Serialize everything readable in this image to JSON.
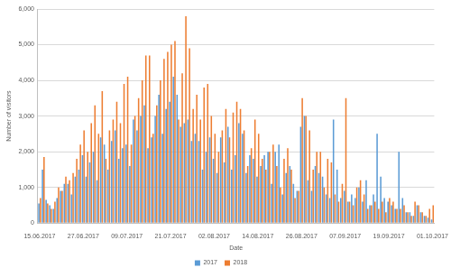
{
  "chart_data": {
    "type": "bar",
    "x_label": "Date",
    "y_label": "Number of visitors",
    "categories": [
      "15.06.2017",
      null,
      null,
      null,
      null,
      null,
      null,
      null,
      null,
      null,
      null,
      null,
      "27.06.2017",
      null,
      null,
      null,
      null,
      null,
      null,
      null,
      null,
      null,
      null,
      null,
      "09.07.2017",
      null,
      null,
      null,
      null,
      null,
      null,
      null,
      null,
      null,
      null,
      null,
      "21.07.2017",
      null,
      null,
      null,
      null,
      null,
      null,
      null,
      null,
      null,
      null,
      null,
      "02.08.2017",
      null,
      null,
      null,
      null,
      null,
      null,
      null,
      null,
      null,
      null,
      null,
      "14.08.2017",
      null,
      null,
      null,
      null,
      null,
      null,
      null,
      null,
      null,
      null,
      null,
      "26.08.2017",
      null,
      null,
      null,
      null,
      null,
      null,
      null,
      null,
      null,
      null,
      null,
      "07.09.2017",
      null,
      null,
      null,
      null,
      null,
      null,
      null,
      null,
      null,
      null,
      null,
      "19.09.2017",
      null,
      null,
      null,
      null,
      null,
      null,
      null,
      null,
      null,
      null,
      null,
      "01.10.2017"
    ],
    "series": [
      {
        "name": "2017",
        "color": "#5b9bd5",
        "values": [
          550,
          1500,
          650,
          500,
          400,
          700,
          900,
          1100,
          1100,
          800,
          1300,
          1500,
          1900,
          1300,
          1700,
          2000,
          1200,
          2400,
          2200,
          1500,
          2300,
          2600,
          1800,
          2100,
          2200,
          1600,
          2900,
          2600,
          3000,
          3300,
          2100,
          2400,
          3000,
          3600,
          2500,
          3200,
          3400,
          4100,
          3600,
          2700,
          2800,
          2900,
          2300,
          2500,
          2300,
          1500,
          2000,
          2400,
          1800,
          1400,
          2400,
          1700,
          2700,
          1500,
          1900,
          2800,
          2500,
          1400,
          1900,
          1800,
          1300,
          1600,
          1900,
          2000,
          1100,
          2000,
          2200,
          800,
          1400,
          1600,
          1100,
          900,
          2700,
          3000,
          1200,
          900,
          1600,
          1400,
          1300,
          800,
          700,
          2900,
          1500,
          700,
          900,
          600,
          800,
          700,
          1000,
          600,
          1200,
          500,
          800,
          2500,
          1300,
          700,
          600,
          500,
          400,
          2000,
          700,
          300,
          300,
          200,
          500,
          300,
          200,
          150,
          100
        ]
      },
      {
        "name": "2018",
        "color": "#ed7d31",
        "values": [
          700,
          1850,
          550,
          400,
          600,
          1000,
          900,
          1300,
          1200,
          1400,
          1800,
          2200,
          2600,
          2000,
          2800,
          3300,
          2500,
          3700,
          1800,
          2600,
          2900,
          3400,
          2800,
          3900,
          4100,
          2200,
          3000,
          3500,
          4000,
          4700,
          4700,
          2500,
          3300,
          4000,
          4600,
          4800,
          5000,
          5100,
          2900,
          4200,
          5800,
          4900,
          3200,
          3600,
          2900,
          3800,
          3900,
          3000,
          2500,
          2000,
          2600,
          3200,
          2400,
          3100,
          3400,
          3200,
          2600,
          1600,
          2100,
          2900,
          2500,
          1800,
          1500,
          2000,
          2200,
          1600,
          1000,
          1800,
          2100,
          1500,
          700,
          900,
          3500,
          3000,
          2600,
          1500,
          2000,
          2000,
          1000,
          1800,
          1700,
          800,
          600,
          1100,
          3500,
          600,
          500,
          1000,
          1200,
          800,
          400,
          500,
          600,
          400,
          600,
          300,
          700,
          600,
          400,
          400,
          500,
          300,
          200,
          600,
          500,
          300,
          200,
          400,
          500
        ]
      }
    ],
    "ylim": [
      0,
      6000
    ],
    "yticks": [
      0,
      1000,
      2000,
      3000,
      4000,
      5000,
      6000
    ],
    "grid": true,
    "legend": "bottom"
  }
}
